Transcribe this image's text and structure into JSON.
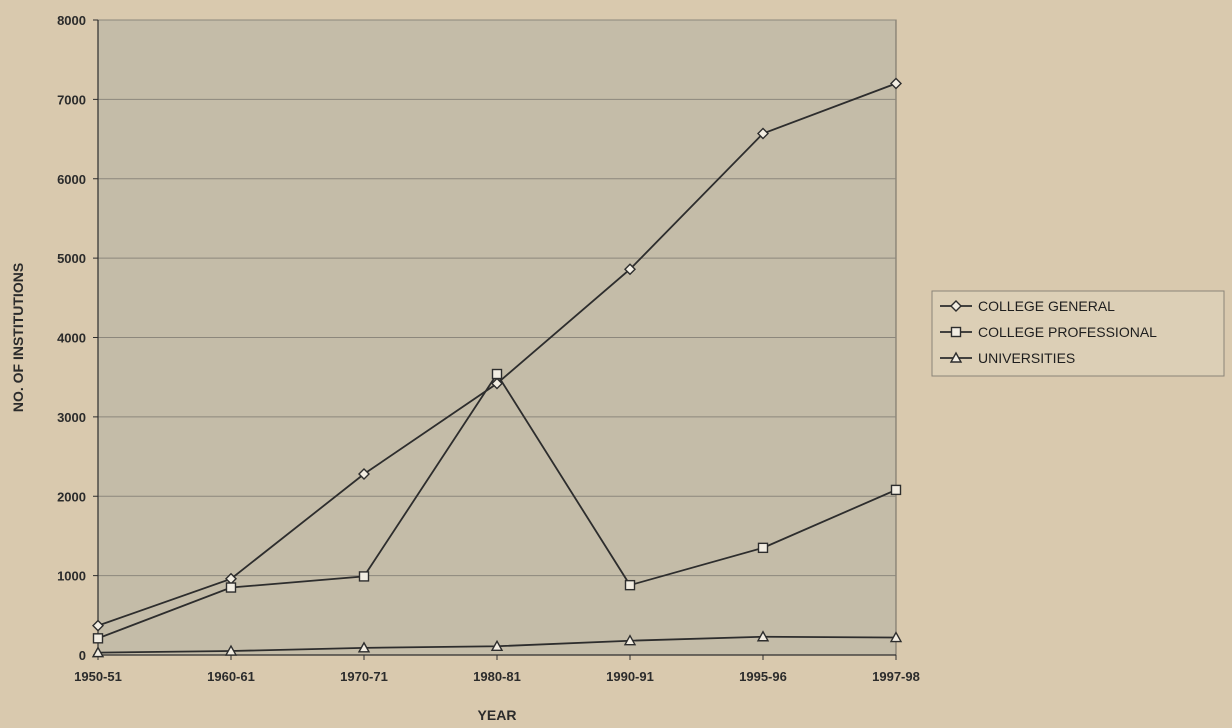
{
  "chart_data": {
    "type": "line",
    "title": "",
    "xlabel": "YEAR",
    "ylabel": "NO. OF INSTITUTIONS",
    "categories": [
      "1950-51",
      "1960-61",
      "1970-71",
      "1980-81",
      "1990-91",
      "1995-96",
      "1997-98"
    ],
    "ylim": [
      0,
      8000
    ],
    "yticks": [
      0,
      1000,
      2000,
      3000,
      4000,
      5000,
      6000,
      7000,
      8000
    ],
    "grid": true,
    "legend_position": "right",
    "series": [
      {
        "name": "COLLEGE GENERAL",
        "marker": "diamond",
        "values": [
          370,
          960,
          2280,
          3420,
          4860,
          6570,
          7200
        ]
      },
      {
        "name": "COLLEGE PROFESSIONAL",
        "marker": "square",
        "values": [
          210,
          850,
          990,
          3540,
          880,
          1350,
          2080
        ]
      },
      {
        "name": "UNIVERSITIES",
        "marker": "triangle",
        "values": [
          30,
          50,
          90,
          110,
          180,
          230,
          220
        ]
      }
    ],
    "colors": {
      "plot_bg": "#c4bca8",
      "page_bg": "#d9c9ae",
      "line": "#2d2d2d",
      "grid": "#8c877c",
      "marker_fill": "#f2ede2"
    }
  }
}
